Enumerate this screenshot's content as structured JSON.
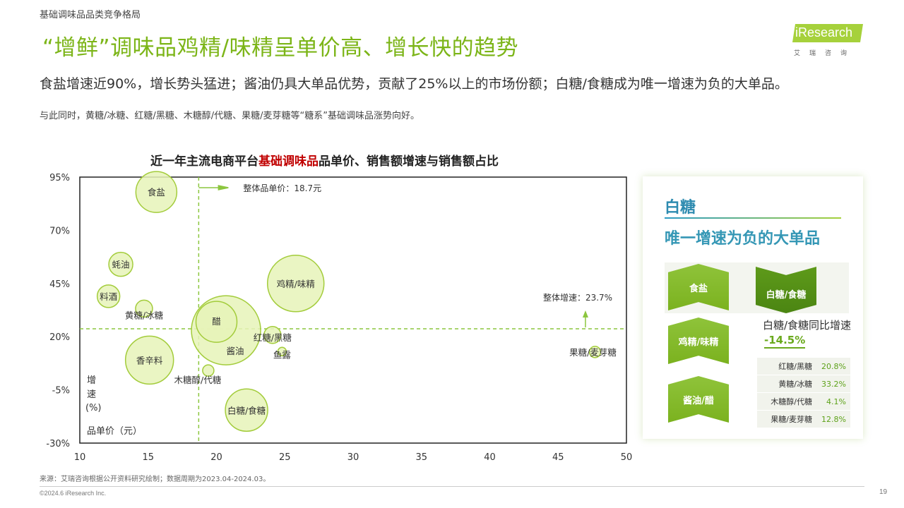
{
  "header": {
    "section": "基础调味品品类竞争格局",
    "headline": "“增鲜”调味品鸡精/味精呈单价高、增长快的趋势",
    "logo_text": "iResearch",
    "logo_sub": "艾瑞咨询"
  },
  "summary": "食盐增速近90%，增长势头猛进；酱油仍具大单品优势，贡献了25%以上的市场份额；白糖/食糖成为唯一增速为负的大单品。",
  "note": "与此同时，黄糖/冰糖、红糖/黑糖、木糖醇/代糖、果糖/麦芽糖等“糖系”基础调味品涨势向好。",
  "chart_title": {
    "prefix": "近一年主流电商平台",
    "highlight": "基础调味品",
    "suffix": "品单价、销售额增速与销售额占比"
  },
  "chart_data": {
    "type": "bubble",
    "xlabel": "品单价（元）",
    "ylabel": "增速(%)",
    "xlim": [
      10,
      50
    ],
    "ylim": [
      -30,
      95
    ],
    "xticks": [
      10,
      15,
      20,
      25,
      30,
      35,
      40,
      45,
      50
    ],
    "yticks": [
      95,
      70,
      45,
      20,
      -5,
      -30
    ],
    "ytick_labels": [
      "95%",
      "70%",
      "45%",
      "20%",
      "-5%",
      "-30%"
    ],
    "ref_lines": {
      "avg_price": 18.7,
      "avg_price_label": "整体品单价：18.7元",
      "avg_growth": 23.7,
      "avg_growth_label": "整体增速：23.7%"
    },
    "points": [
      {
        "name": "食盐",
        "x": 15.6,
        "y": 88,
        "size": 29
      },
      {
        "name": "蚝油",
        "x": 13.0,
        "y": 54,
        "size": 17
      },
      {
        "name": "料酒",
        "x": 12.1,
        "y": 39,
        "size": 16
      },
      {
        "name": "黄糖/冰糖",
        "x": 14.7,
        "y": 33.2,
        "size": 12
      },
      {
        "name": "鸡精/味精",
        "x": 25.8,
        "y": 45,
        "size": 40
      },
      {
        "name": "醋",
        "x": 20.0,
        "y": 27,
        "size": 29
      },
      {
        "name": "酱油",
        "x": 20.7,
        "y": 23,
        "size": 49
      },
      {
        "name": "红糖/黑糖",
        "x": 24.1,
        "y": 20.8,
        "size": 12
      },
      {
        "name": "鱼露",
        "x": 24.8,
        "y": 13,
        "size": 6
      },
      {
        "name": "香辛料",
        "x": 15.1,
        "y": 9,
        "size": 34
      },
      {
        "name": "木糖醇/代糖",
        "x": 19.4,
        "y": 4.1,
        "size": 8
      },
      {
        "name": "白糖/食糖",
        "x": 22.2,
        "y": -14.5,
        "size": 30
      },
      {
        "name": "果糖/麦芽糖",
        "x": 47.7,
        "y": 12.8,
        "size": 8
      }
    ]
  },
  "panel": {
    "title": "白糖",
    "subtitle": "唯一增速为负的大单品",
    "chevrons": [
      "食盐",
      "白糖/食糖",
      "鸡精/味精",
      "酱油/醋"
    ],
    "stat_label": "白糖/食糖同比增速",
    "stat_value": "-14.5%",
    "table": [
      {
        "name": "红糖/黑糖",
        "value": "20.8%"
      },
      {
        "name": "黄糖/冰糖",
        "value": "33.2%"
      },
      {
        "name": "木糖醇/代糖",
        "value": "4.1%"
      },
      {
        "name": "果糖/麦芽糖",
        "value": "12.8%"
      }
    ]
  },
  "footer": {
    "source": "来源：艾瑞咨询根据公开资料研究绘制；数据周期为2023.04-2024.03。",
    "copyright": "©2024.6 iResearch Inc.",
    "page": "19"
  },
  "colors": {
    "accent": "#7cb518",
    "bubble_fill": "#e4f2b6",
    "bubble_stroke": "#a3cc3b",
    "highlight_red": "#c00000"
  }
}
